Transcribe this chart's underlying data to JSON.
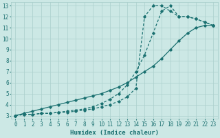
{
  "xlabel": "Humidex (Indice chaleur)",
  "bg_color": "#cce8e5",
  "line_color": "#1a7070",
  "grid_color": "#aacfcc",
  "xlim": [
    -0.5,
    23.5
  ],
  "ylim": [
    2.7,
    13.3
  ],
  "xticks": [
    0,
    1,
    2,
    3,
    4,
    5,
    6,
    7,
    8,
    9,
    10,
    11,
    12,
    13,
    14,
    15,
    16,
    17,
    18,
    19,
    20,
    21,
    22,
    23
  ],
  "yticks": [
    3,
    4,
    5,
    6,
    7,
    8,
    9,
    10,
    11,
    12,
    13
  ],
  "line1_x": [
    0,
    1,
    2,
    3,
    4,
    5,
    6,
    7,
    8,
    9,
    10,
    11,
    12,
    13,
    14,
    15,
    16,
    17,
    18,
    19,
    20,
    21,
    22,
    23
  ],
  "line1_y": [
    3.0,
    3.2,
    3.4,
    3.6,
    3.8,
    4.0,
    4.2,
    4.4,
    4.6,
    4.8,
    5.0,
    5.3,
    5.6,
    6.0,
    6.5,
    7.0,
    7.5,
    8.2,
    9.0,
    9.8,
    10.5,
    11.0,
    11.2,
    11.2
  ],
  "line2_x": [
    0,
    1,
    2,
    3,
    4,
    5,
    6,
    7,
    8,
    9,
    10,
    11,
    12,
    13,
    14,
    15,
    16,
    17,
    18,
    19,
    20,
    21,
    22,
    23
  ],
  "line2_y": [
    3.0,
    3.1,
    3.1,
    3.2,
    3.2,
    3.3,
    3.3,
    3.4,
    3.5,
    3.6,
    3.8,
    4.0,
    4.3,
    4.7,
    5.5,
    12.0,
    13.0,
    13.0,
    12.5,
    12.0,
    12.0,
    11.8,
    11.5,
    11.2
  ],
  "line3_x": [
    0,
    1,
    2,
    3,
    4,
    5,
    6,
    7,
    8,
    9,
    10,
    11,
    12,
    13,
    14,
    15,
    16,
    17,
    18,
    19,
    20,
    21,
    22,
    23
  ],
  "line3_y": [
    3.0,
    3.1,
    3.1,
    3.2,
    3.2,
    3.3,
    3.4,
    3.5,
    3.6,
    3.8,
    4.1,
    4.5,
    5.0,
    5.8,
    7.0,
    8.5,
    10.5,
    12.5,
    13.0,
    12.0,
    12.0,
    11.8,
    11.5,
    11.2
  ]
}
